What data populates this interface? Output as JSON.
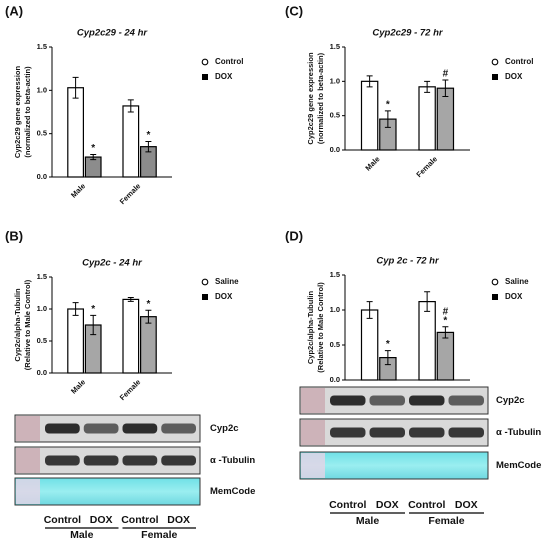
{
  "chart_data": [
    {
      "type": "bar",
      "panel": "(A)",
      "title": "Cyp2c29 - 24 hr",
      "ylabel": [
        "Cyp2c29 gene expression",
        "(normalized to beta-actin)"
      ],
      "categories": [
        "Male",
        "Female"
      ],
      "ylim": [
        0,
        1.5
      ],
      "yticks": [
        {
          "value": 0,
          "label": "0.0"
        },
        0.5,
        {
          "value": 1,
          "label": "1.0"
        },
        1.5
      ],
      "series": [
        {
          "name": "Control",
          "color": "#ffffff",
          "values": [
            1.03,
            0.82
          ],
          "errors": [
            0.12,
            0.07
          ]
        },
        {
          "name": "DOX",
          "color": "#8c8c8c",
          "values": [
            0.23,
            0.35
          ],
          "errors": [
            0.03,
            0.06
          ],
          "annotations": [
            [
              "*"
            ],
            [
              "*"
            ]
          ]
        }
      ]
    },
    {
      "type": "bar",
      "panel": "(B)",
      "title": "Cyp2c - 24 hr",
      "ylabel": [
        "Cyp2c/alpha-Tubulin",
        "(Relative to Male Control)"
      ],
      "categories": [
        "Male",
        "Female"
      ],
      "ylim": [
        0,
        1.5
      ],
      "yticks": [
        {
          "value": 0,
          "label": "0.0"
        },
        0.5,
        {
          "value": 1,
          "label": "1.0"
        },
        1.5
      ],
      "series": [
        {
          "name": "Saline",
          "color": "#ffffff",
          "values": [
            1.0,
            1.15
          ],
          "errors": [
            0.1,
            0.03
          ]
        },
        {
          "name": "DOX",
          "color": "#a6a6a6",
          "values": [
            0.75,
            0.88
          ],
          "errors": [
            0.15,
            0.1
          ],
          "annotations": [
            [
              "*"
            ],
            [
              "*"
            ]
          ]
        }
      ]
    },
    {
      "type": "bar",
      "panel": "(C)",
      "title": "Cyp2c29 - 72 hr",
      "ylabel": [
        "Cyp2c29 gene expression",
        "(normalized to beta-actin)"
      ],
      "categories": [
        "Male",
        "Female"
      ],
      "ylim": [
        0,
        1.5
      ],
      "yticks": [
        {
          "value": 0,
          "label": "0.0"
        },
        0.5,
        {
          "value": 1,
          "label": "1.0"
        },
        1.5
      ],
      "series": [
        {
          "name": "Control",
          "color": "#ffffff",
          "values": [
            1.0,
            0.92
          ],
          "errors": [
            0.08,
            0.08
          ]
        },
        {
          "name": "DOX",
          "color": "#a6a6a6",
          "values": [
            0.45,
            0.9
          ],
          "errors": [
            0.12,
            0.12
          ],
          "annotations": [
            [
              "*"
            ],
            [
              "#"
            ]
          ]
        }
      ]
    },
    {
      "type": "bar",
      "panel": "(D)",
      "title": "Cyp 2c - 72 hr",
      "ylabel": [
        "Cyp2c/alpha-Tubulin",
        "(Relative to Male Control)"
      ],
      "categories": [
        "Male",
        "Female"
      ],
      "ylim": [
        0,
        1.5
      ],
      "yticks": [
        {
          "value": 0,
          "label": "0.0"
        },
        0.5,
        {
          "value": 1,
          "label": "1.0"
        },
        1.5
      ],
      "series": [
        {
          "name": "Saline",
          "color": "#ffffff",
          "values": [
            1.0,
            1.12
          ],
          "errors": [
            0.12,
            0.14
          ]
        },
        {
          "name": "DOX",
          "color": "#a6a6a6",
          "values": [
            0.32,
            0.68
          ],
          "errors": [
            0.1,
            0.08
          ],
          "annotations": [
            [
              "*"
            ],
            [
              "#",
              "*"
            ]
          ]
        }
      ]
    }
  ],
  "blots": [
    {
      "bands": [
        "Cyp2c",
        "α -Tubulin",
        "MemCode"
      ],
      "lanes": [
        "Control",
        "DOX",
        "Control",
        "DOX"
      ],
      "groups": [
        "Male",
        "Female"
      ]
    },
    {
      "bands": [
        "Cyp2c",
        "α -Tubulin",
        "MemCode"
      ],
      "lanes": [
        "Control",
        "DOX",
        "Control",
        "DOX"
      ],
      "groups": [
        "Male",
        "Female"
      ]
    }
  ]
}
